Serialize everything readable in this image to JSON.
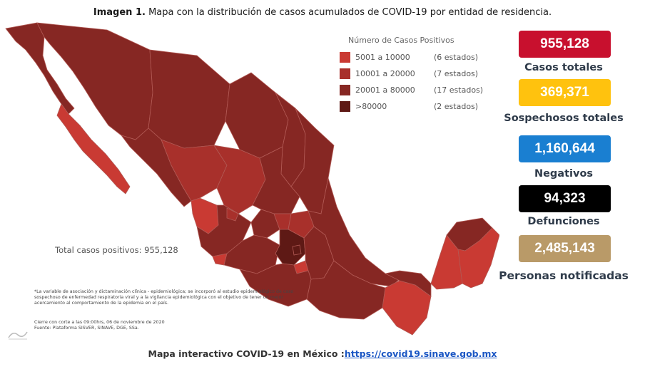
{
  "title": {
    "bold": "Imagen 1.",
    "text": " Mapa con la distribución de casos acumulados de COVID-19 por entidad de residencia."
  },
  "legend": {
    "title": "Número de Casos Positivos",
    "items": [
      {
        "range": "5001 a  10000",
        "count": "(6 estados)",
        "color": "#c93a33"
      },
      {
        "range": "10001 a  20000",
        "count": "(7 estados)",
        "color": "#a8302b"
      },
      {
        "range": "20001 a  80000",
        "count": "(17 estados)",
        "color": "#862723"
      },
      {
        "range": ">80000",
        "count": "(2 estados)",
        "color": "#5e1915"
      }
    ]
  },
  "map_total": "Total casos positivos: 955,128",
  "footnote": "*La variable de asociación y dictaminación clínica - epidemiológica; se incorporó al estudio epidemiológico de caso sospechoso de enfermedad respiratoria viral y a la vigilancia epidemiológica con el objetivo de tener un mejor acercamiento al comportamiento de la epidemia en el país.",
  "cutoff": "Cierre con corte a las 09:00hrs, 06 de noviembre de 2020",
  "source": "Fuente: Plataforma SISVER, SINAVE, DGE, SSa.",
  "stats": [
    {
      "value": "955,128",
      "label": "Casos totales",
      "bg": "#c8102e",
      "fg": "#ffffff"
    },
    {
      "value": "369,371",
      "label": "Sospechosos totales",
      "bg": "#ffc20e",
      "fg": "#ffffff"
    },
    {
      "value": "1,160,644",
      "label": "Negativos",
      "bg": "#1a7fd1",
      "fg": "#ffffff"
    },
    {
      "value": "94,323",
      "label": "Defunciones",
      "bg": "#000000",
      "fg": "#ffffff"
    },
    {
      "value": "2,485,143",
      "label": "Personas notificadas",
      "bg": "#b99a68",
      "fg": "#ffffff"
    }
  ],
  "footer": {
    "text": "Mapa interactivo COVID-19 en México :",
    "link": "https://covid19.sinave.gob.mx"
  },
  "colors": {
    "map_dark": "#862723",
    "map_darkest": "#5e1915",
    "map_medium": "#a8302b",
    "map_light": "#c93a33",
    "border": "#b25a55"
  }
}
